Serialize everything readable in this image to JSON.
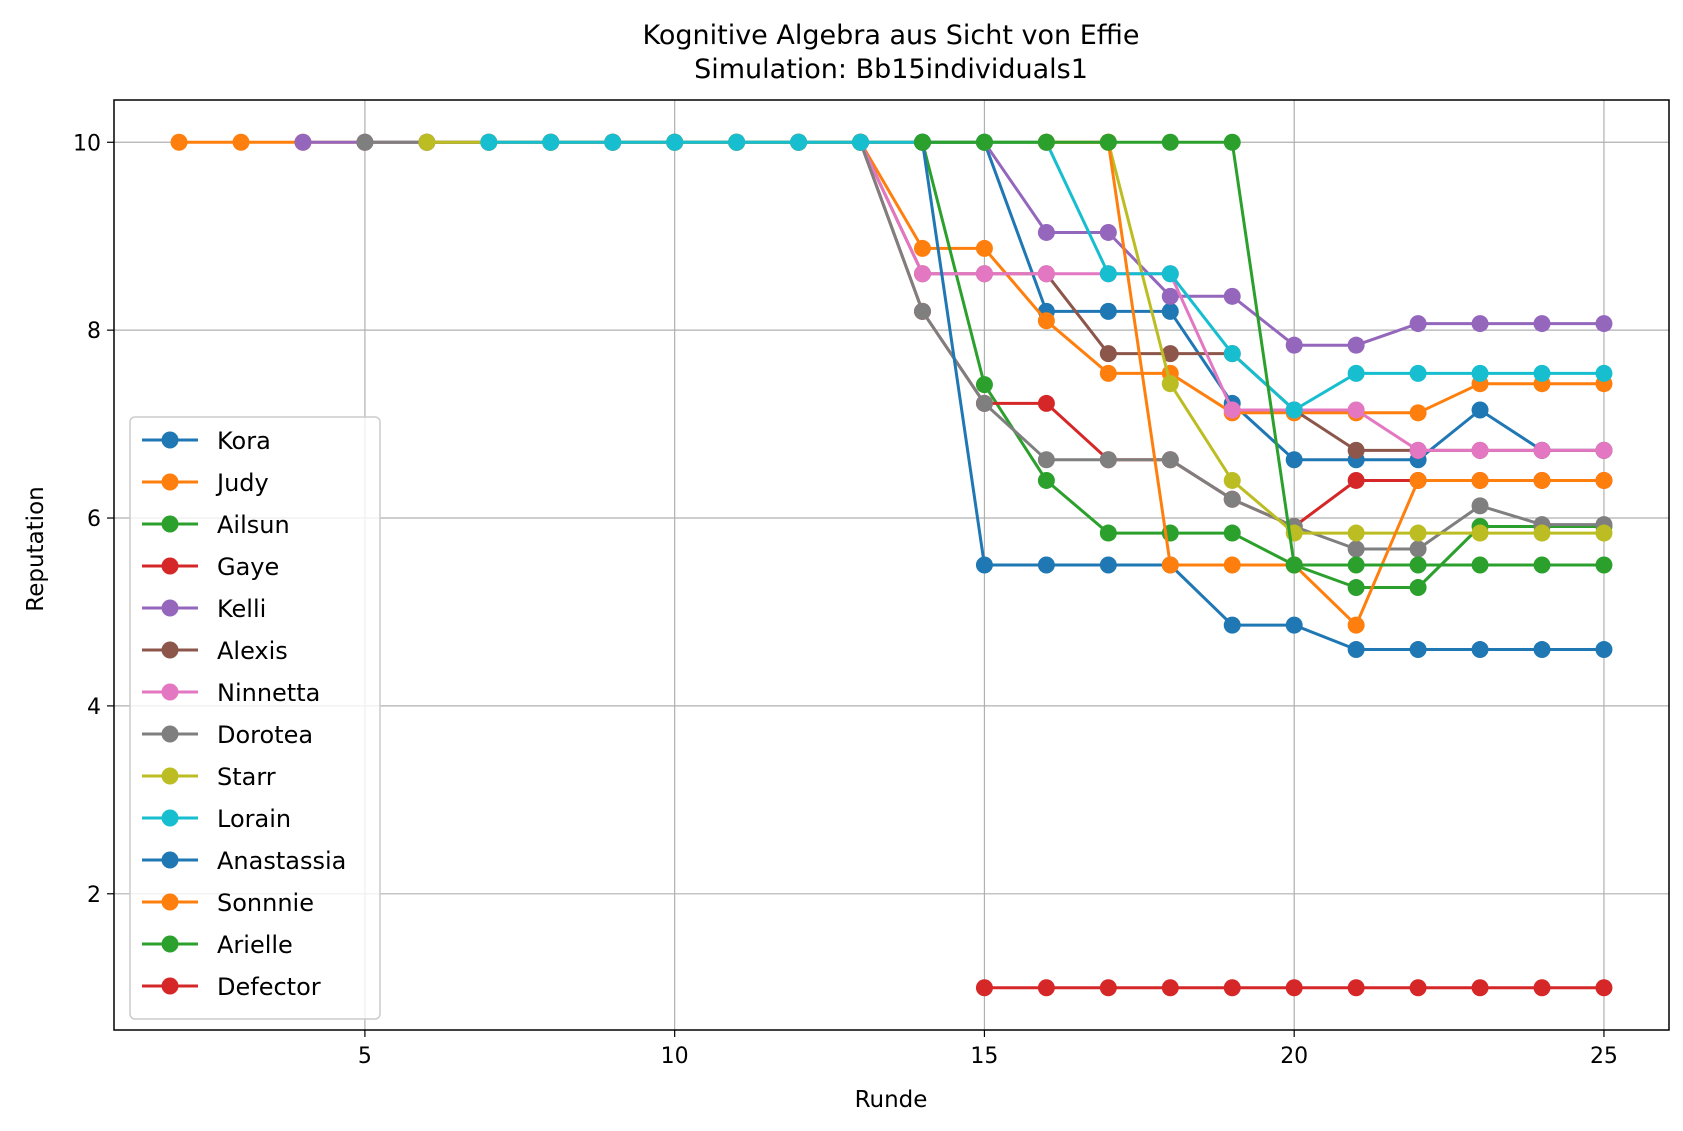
{
  "chart_data": {
    "type": "line",
    "title": "Kognitive Algebra aus Sicht von Effie",
    "subtitle": "Simulation: Bb15individuals1",
    "xlabel": "Runde",
    "ylabel": "Reputation",
    "xlim": [
      0.95,
      26.05
    ],
    "ylim": [
      0.55,
      10.45
    ],
    "xticks": [
      5,
      10,
      15,
      20,
      25
    ],
    "yticks": [
      2,
      4,
      6,
      8,
      10
    ],
    "grid": true,
    "legend_position": "lower-left",
    "series": [
      {
        "name": "Kora",
        "color": "#1f77b4",
        "x": [
          8,
          9,
          10,
          11,
          12,
          13,
          14,
          15,
          16,
          17,
          18,
          19,
          20,
          21,
          22,
          23,
          24,
          25
        ],
        "y": [
          10,
          10,
          10,
          10,
          10,
          10,
          10,
          10,
          8.2,
          8.2,
          8.2,
          7.22,
          6.62,
          6.62,
          6.62,
          7.15,
          6.72,
          6.72
        ]
      },
      {
        "name": "Judy",
        "color": "#ff7f0e",
        "x": [
          2,
          3,
          4,
          5,
          6,
          7,
          8,
          9,
          10,
          11,
          12,
          13,
          14,
          15,
          16,
          17,
          18,
          19,
          20,
          21,
          22,
          23,
          24,
          25
        ],
        "y": [
          10,
          10,
          10,
          10,
          10,
          10,
          10,
          10,
          10,
          10,
          10,
          10,
          8.87,
          8.87,
          8.1,
          7.54,
          7.54,
          7.12,
          7.12,
          7.12,
          7.12,
          7.43,
          7.43,
          7.43
        ]
      },
      {
        "name": "Ailsun",
        "color": "#2ca02c",
        "x": [
          10,
          11,
          12,
          13,
          14,
          15,
          16,
          17,
          18,
          19,
          20,
          21,
          22,
          23,
          24,
          25
        ],
        "y": [
          10,
          10,
          10,
          10,
          10,
          7.42,
          6.4,
          5.84,
          5.84,
          5.84,
          5.5,
          5.26,
          5.26,
          5.91,
          5.91,
          5.91
        ]
      },
      {
        "name": "Gaye",
        "color": "#d62728",
        "x": [
          13,
          14,
          15,
          16,
          17,
          18,
          19,
          20,
          21,
          22,
          23,
          24,
          25
        ],
        "y": [
          10,
          8.2,
          7.22,
          7.22,
          6.62,
          6.62,
          6.2,
          5.91,
          6.4,
          6.4,
          6.4,
          6.4,
          6.4
        ]
      },
      {
        "name": "Kelli",
        "color": "#9467bd",
        "x": [
          4,
          5,
          6,
          7,
          8,
          9,
          10,
          11,
          12,
          13,
          14,
          15,
          16,
          17,
          18,
          19,
          20,
          21,
          22,
          23,
          24,
          25
        ],
        "y": [
          10,
          10,
          10,
          10,
          10,
          10,
          10,
          10,
          10,
          10,
          10,
          10,
          9.04,
          9.04,
          8.36,
          8.36,
          7.84,
          7.84,
          8.07,
          8.07,
          8.07,
          8.07
        ]
      },
      {
        "name": "Alexis",
        "color": "#8c564b",
        "x": [
          13,
          14,
          15,
          16,
          17,
          18,
          19,
          20,
          21,
          22,
          23,
          24,
          25
        ],
        "y": [
          10,
          8.6,
          8.6,
          8.6,
          7.75,
          7.75,
          7.75,
          7.15,
          6.72,
          6.72,
          6.72,
          6.72,
          6.72
        ]
      },
      {
        "name": "Ninnetta",
        "color": "#e377c2",
        "x": [
          13,
          14,
          15,
          16,
          17,
          18,
          19,
          20,
          21,
          22,
          23,
          24,
          25
        ],
        "y": [
          10,
          8.6,
          8.6,
          8.6,
          8.6,
          8.6,
          7.15,
          7.15,
          7.15,
          6.72,
          6.72,
          6.72,
          6.72
        ]
      },
      {
        "name": "Dorotea",
        "color": "#7f7f7f",
        "x": [
          5,
          6,
          7,
          8,
          9,
          10,
          11,
          12,
          13,
          14,
          15,
          16,
          17,
          18,
          19,
          20,
          21,
          22,
          23,
          24,
          25
        ],
        "y": [
          10,
          10,
          10,
          10,
          10,
          10,
          10,
          10,
          10,
          8.2,
          7.22,
          6.62,
          6.62,
          6.62,
          6.2,
          5.91,
          5.67,
          5.67,
          6.13,
          5.93,
          5.93
        ]
      },
      {
        "name": "Starr",
        "color": "#bcbd22",
        "x": [
          6,
          7,
          8,
          9,
          10,
          11,
          12,
          13,
          14,
          15,
          16,
          17,
          18,
          19,
          20,
          21,
          22,
          23,
          24,
          25
        ],
        "y": [
          10,
          10,
          10,
          10,
          10,
          10,
          10,
          10,
          10,
          10,
          10,
          10,
          7.43,
          6.4,
          5.84,
          5.84,
          5.84,
          5.84,
          5.84,
          5.84
        ]
      },
      {
        "name": "Lorain",
        "color": "#17becf",
        "x": [
          7,
          8,
          9,
          10,
          11,
          12,
          13,
          14,
          15,
          16,
          17,
          18,
          19,
          20,
          21,
          22,
          23,
          24,
          25
        ],
        "y": [
          10,
          10,
          10,
          10,
          10,
          10,
          10,
          10,
          10,
          10,
          8.6,
          8.6,
          7.75,
          7.15,
          7.54,
          7.54,
          7.54,
          7.54,
          7.54
        ]
      },
      {
        "name": "Anastassia",
        "color": "#1f77b4",
        "x": [
          14,
          15,
          16,
          17,
          18,
          19,
          20,
          21,
          22,
          23,
          24,
          25
        ],
        "y": [
          10,
          5.5,
          5.5,
          5.5,
          5.5,
          4.86,
          4.86,
          4.6,
          4.6,
          4.6,
          4.6,
          4.6
        ]
      },
      {
        "name": "Sonnnie",
        "color": "#ff7f0e",
        "x": [
          16,
          17,
          18,
          19,
          20,
          21,
          22,
          23,
          24,
          25
        ],
        "y": [
          10,
          10,
          5.5,
          5.5,
          5.5,
          4.86,
          6.4,
          6.4,
          6.4,
          6.4
        ]
      },
      {
        "name": "Arielle",
        "color": "#2ca02c",
        "x": [
          14,
          15,
          16,
          17,
          18,
          19,
          20,
          21,
          22,
          23,
          24,
          25
        ],
        "y": [
          10,
          10,
          10,
          10,
          10,
          10,
          5.5,
          5.5,
          5.5,
          5.5,
          5.5,
          5.5
        ]
      },
      {
        "name": "Defector",
        "color": "#d62728",
        "x": [
          15,
          16,
          17,
          18,
          19,
          20,
          21,
          22,
          23,
          24,
          25
        ],
        "y": [
          1,
          1,
          1,
          1,
          1,
          1,
          1,
          1,
          1,
          1,
          1
        ]
      }
    ]
  }
}
